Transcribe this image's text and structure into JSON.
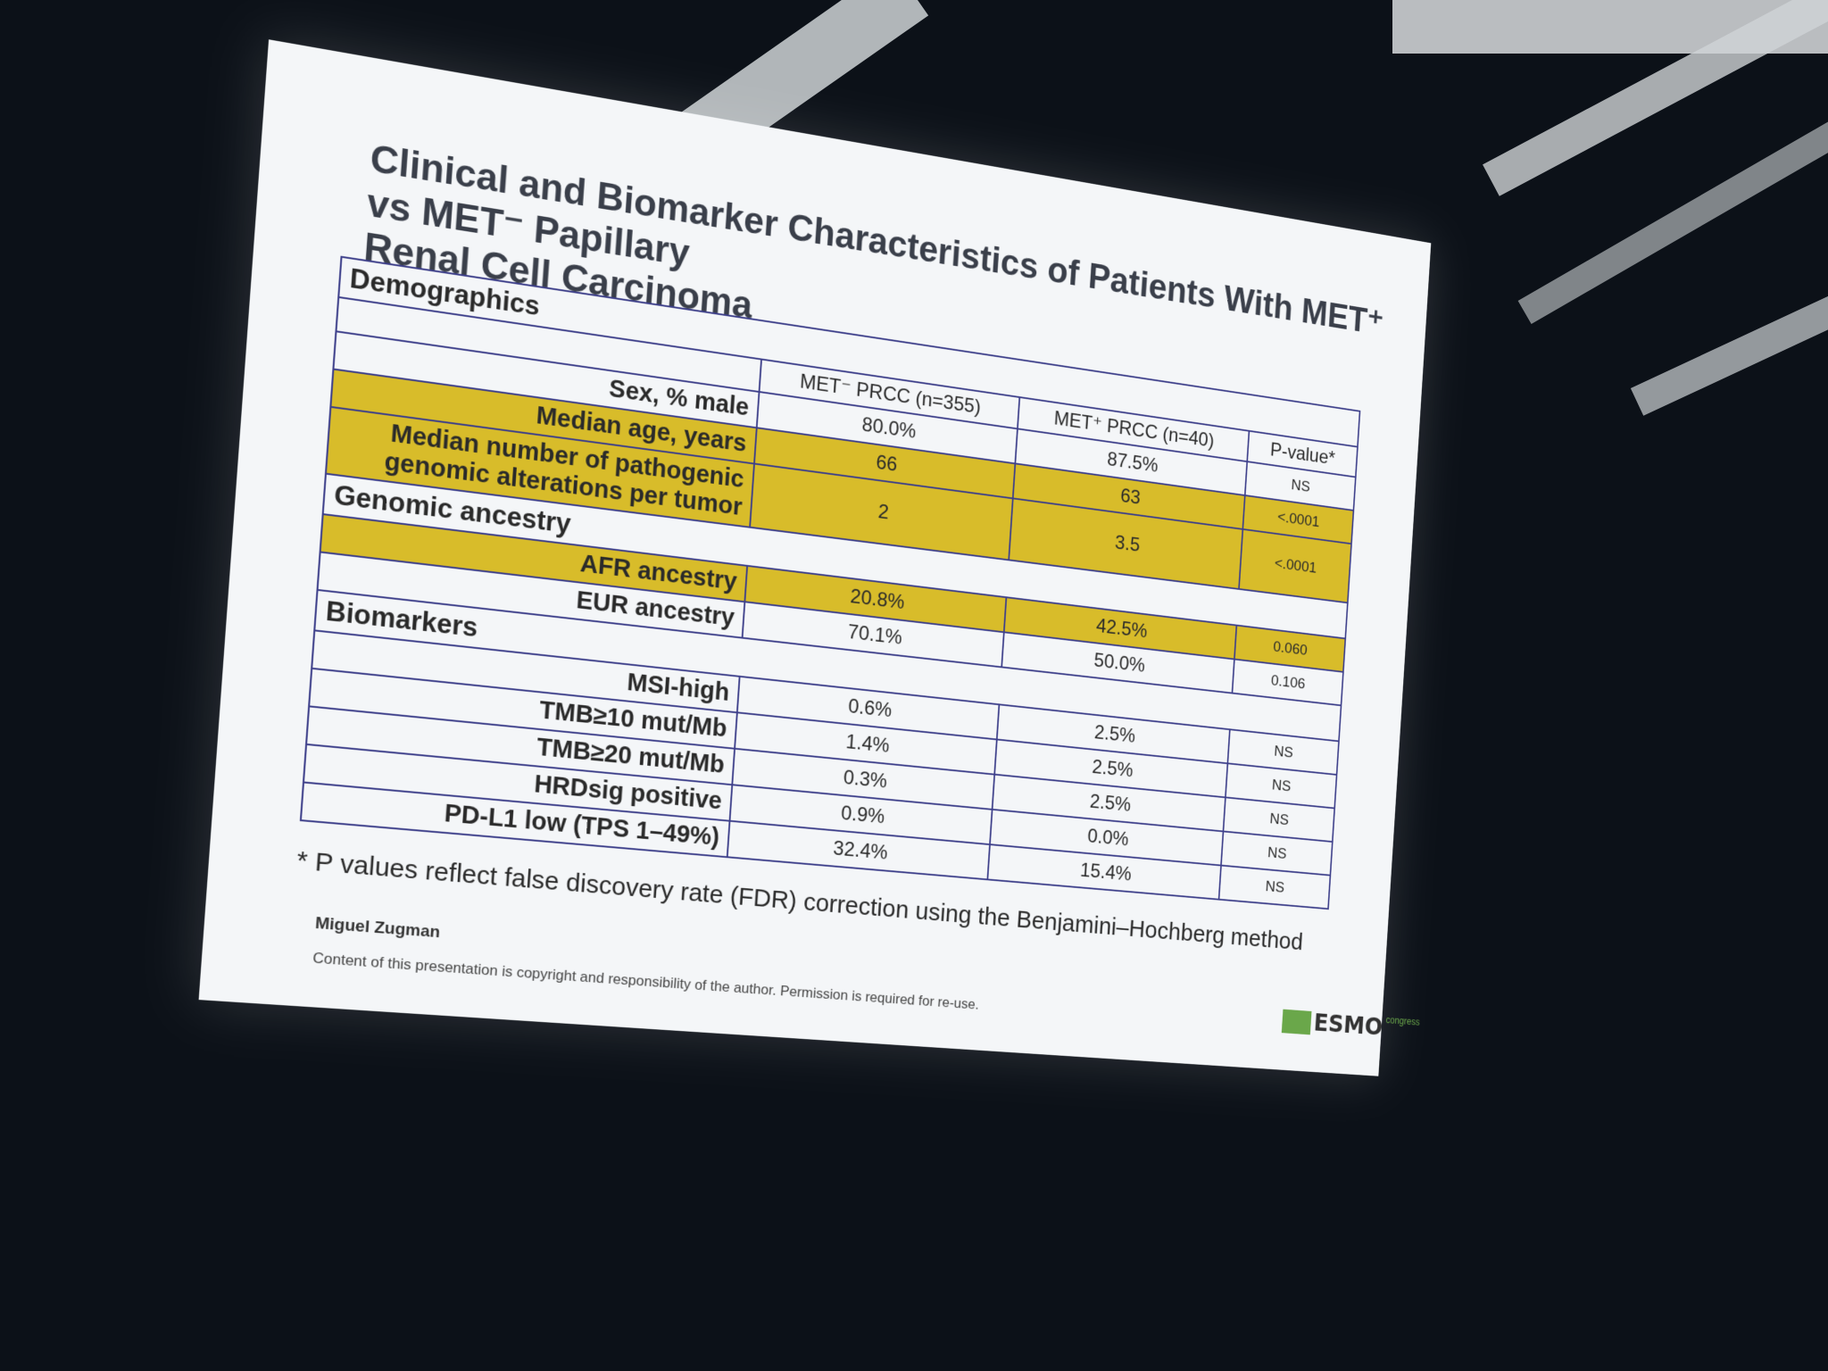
{
  "slide": {
    "title_line1": "Clinical and Biomarker Characteristics of Patients With MET⁺ vs MET⁻ Papillary",
    "title_line2": "Renal Cell Carcinoma",
    "columns": {
      "met_neg": "MET⁻ PRCC (n=355)",
      "met_pos": "MET⁺ PRCC (n=40)",
      "pvalue": "P-value*"
    },
    "demographics": {
      "header": "Demographics",
      "rows": [
        {
          "label": "Sex, % male",
          "neg": "80.0%",
          "pos": "87.5%",
          "p": "NS"
        },
        {
          "label": "Median age, years",
          "neg": "66",
          "pos": "63",
          "p": "<.0001"
        },
        {
          "label": "Median number of pathogenic genomic alterations per tumor",
          "neg": "2",
          "pos": "3.5",
          "p": "<.0001"
        }
      ]
    },
    "ancestry": {
      "header": "Genomic ancestry",
      "rows": [
        {
          "label": "AFR ancestry",
          "neg": "20.8%",
          "pos": "42.5%",
          "p": "0.060"
        },
        {
          "label": "EUR ancestry",
          "neg": "70.1%",
          "pos": "50.0%",
          "p": "0.106"
        }
      ]
    },
    "biomarkers": {
      "header": "Biomarkers",
      "rows": [
        {
          "label": "MSI-high",
          "neg": "0.6%",
          "pos": "2.5%",
          "p": "NS"
        },
        {
          "label": "TMB≥10 mut/Mb",
          "neg": "1.4%",
          "pos": "2.5%",
          "p": "NS"
        },
        {
          "label": "TMB≥20 mut/Mb",
          "neg": "0.3%",
          "pos": "2.5%",
          "p": "NS"
        },
        {
          "label": "HRDsig positive",
          "neg": "0.9%",
          "pos": "0.0%",
          "p": "NS"
        },
        {
          "label": "PD-L1 low (TPS 1–49%)",
          "neg": "32.4%",
          "pos": "15.4%",
          "p": "NS"
        }
      ]
    },
    "footnote": "* P values reflect false discovery rate (FDR) correction using the Benjamini–Hochberg method",
    "author": "Miguel Zugman",
    "copyright": "Content of this presentation is copyright and responsibility of the author. Permission is required for re-use.",
    "logo": {
      "word": "ESMO",
      "sup": "congress"
    }
  },
  "colors": {
    "highlight": "#d8bc2a",
    "border": "#3d3f8a",
    "background": "#0c1118",
    "logo_green": "#6aa74a"
  }
}
